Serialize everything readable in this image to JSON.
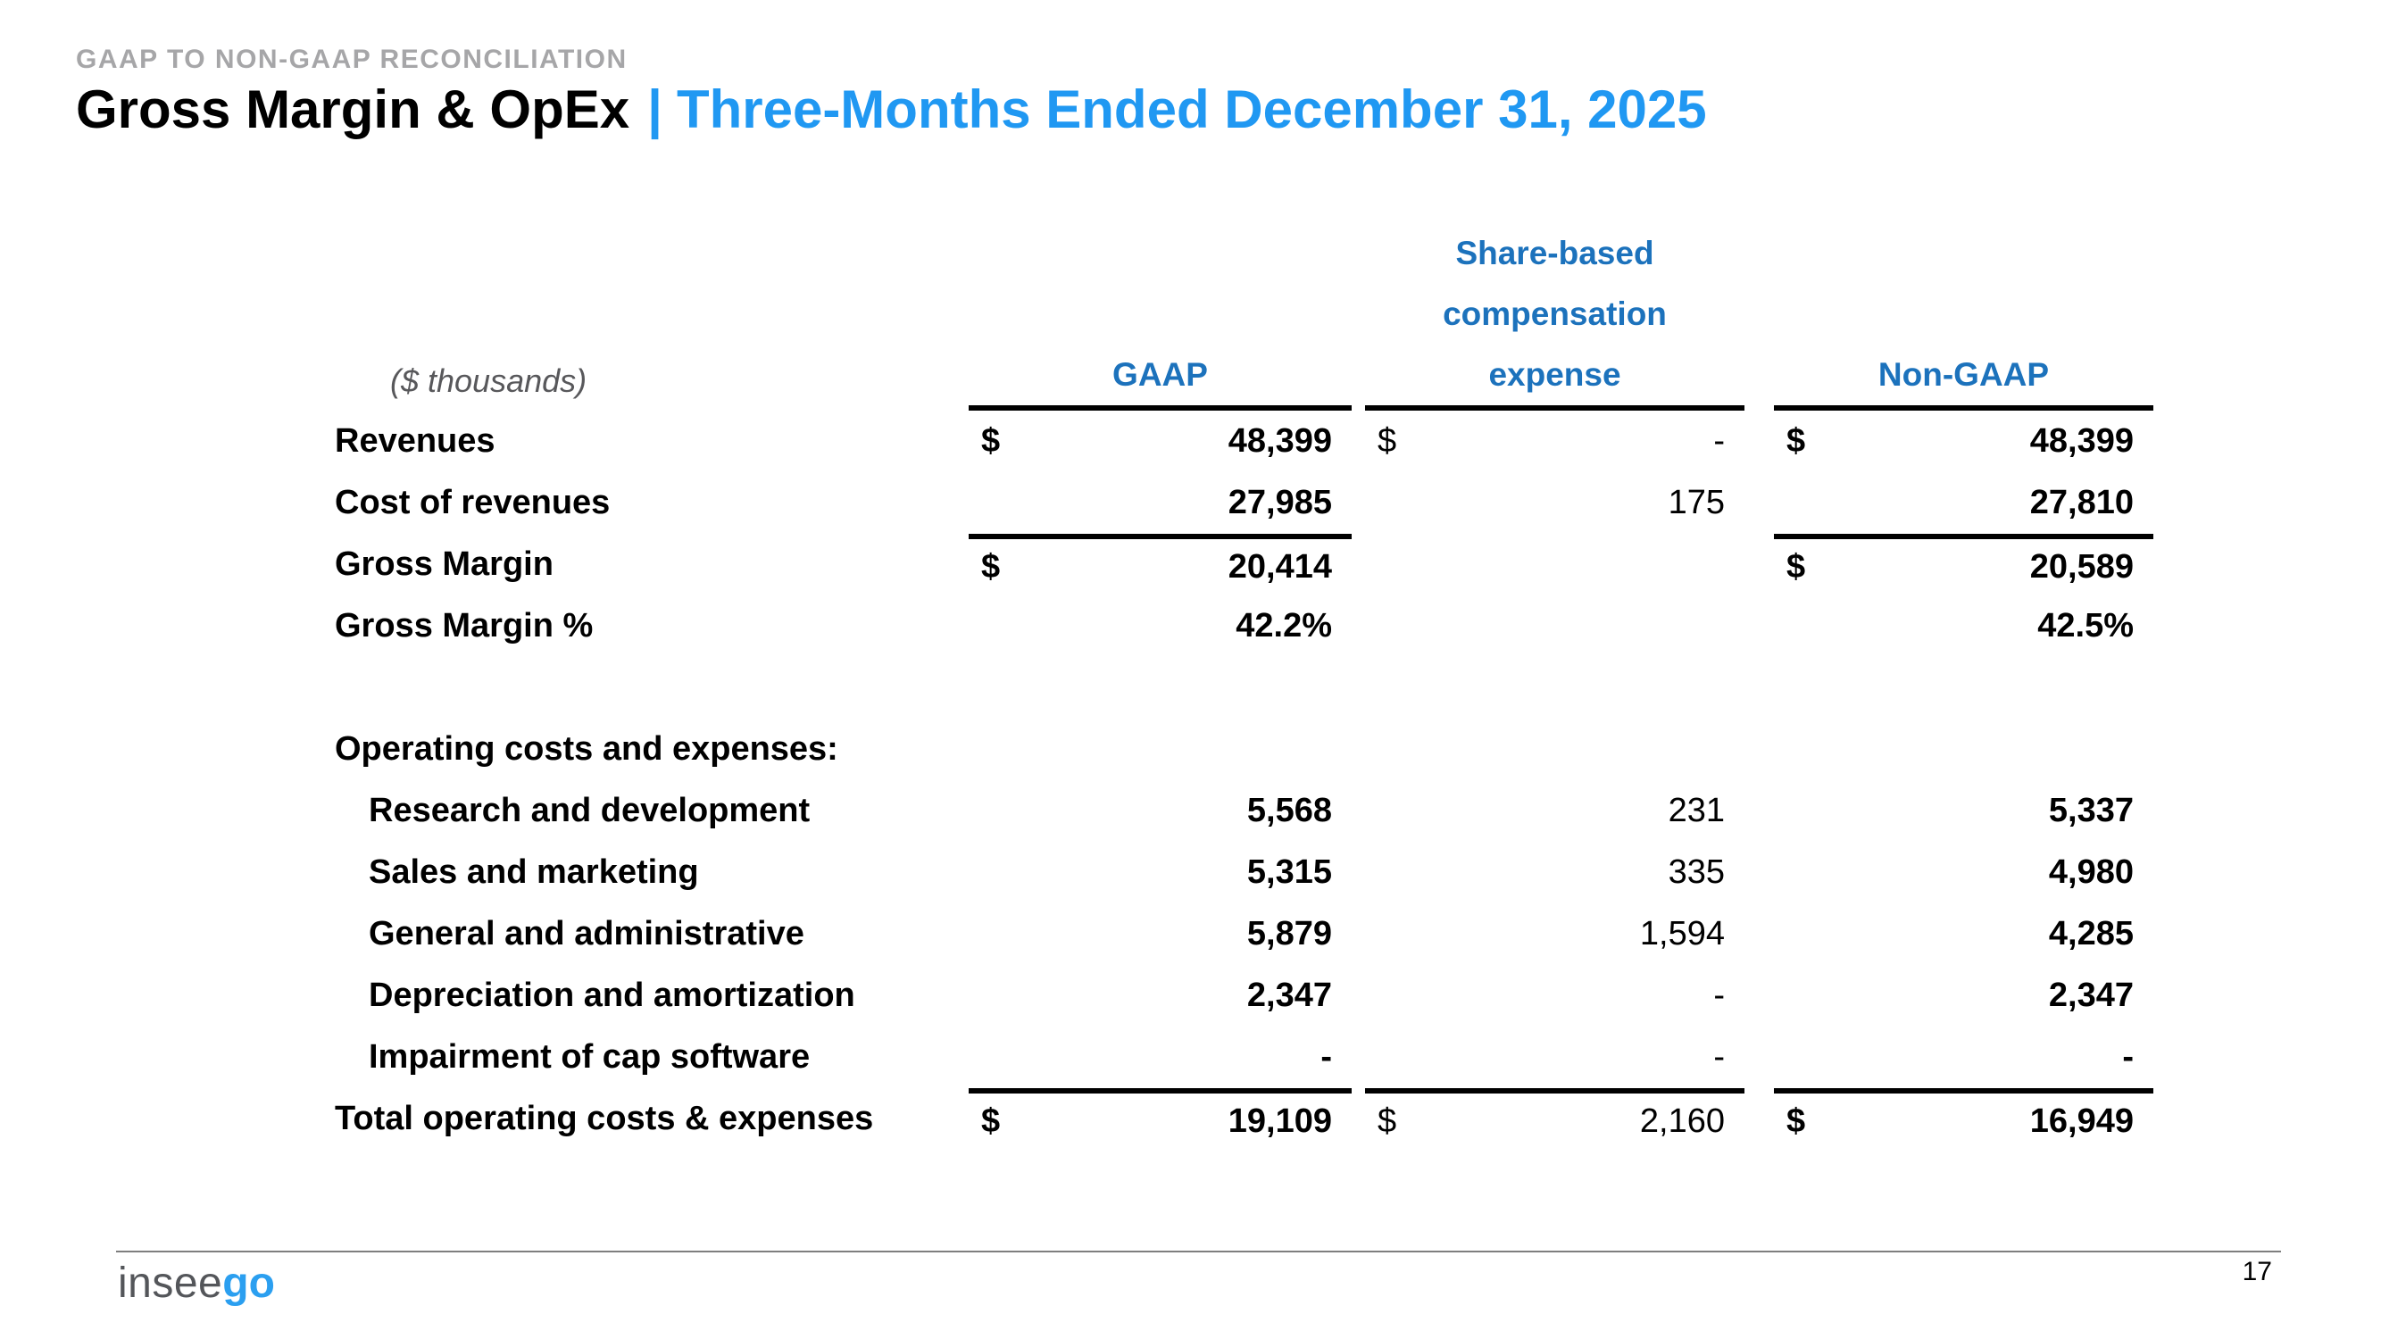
{
  "header": {
    "eyebrow": "GAAP TO NON-GAAP RECONCILIATION",
    "title_main": "Gross Margin & OpEx",
    "title_separator": "|",
    "title_period": "Three-Months Ended December 31, 2025"
  },
  "colors": {
    "accent_blue": "#2098f2",
    "table_header_blue": "#1c72bc",
    "eyebrow_gray": "#a6a6a8",
    "logo_gray": "#54565a",
    "logo_blue": "#2b9ff0"
  },
  "table": {
    "units_note": "($ thousands)",
    "header": {
      "gaap": "GAAP",
      "sbc_line1": "Share-based",
      "sbc_line2": "compensation",
      "sbc_line3": "expense",
      "non_gaap": "Non-GAAP"
    },
    "rows": [
      {
        "label": "Revenues",
        "gaap_cur": "$",
        "gaap_val": "48,399",
        "sbc_cur": "$",
        "sbc_val": "-",
        "ngaap_cur": "$",
        "ngaap_val": "48,399"
      },
      {
        "label": "Cost of revenues",
        "gaap_val": "27,985",
        "sbc_val": "175",
        "ngaap_val": "27,810"
      },
      {
        "label": "Gross Margin",
        "gaap_cur": "$",
        "gaap_val": "20,414",
        "ngaap_cur": "$",
        "ngaap_val": "20,589"
      },
      {
        "label": "Gross Margin %",
        "gaap_val": "42.2%",
        "ngaap_val": "42.5%"
      },
      {
        "label": "Operating costs and expenses:"
      },
      {
        "label": "Research and development",
        "gaap_val": "5,568",
        "sbc_val": "231",
        "ngaap_val": "5,337"
      },
      {
        "label": "Sales and marketing",
        "gaap_val": "5,315",
        "sbc_val": "335",
        "ngaap_val": "4,980"
      },
      {
        "label": "General and administrative",
        "gaap_val": "5,879",
        "sbc_val": "1,594",
        "ngaap_val": "4,285"
      },
      {
        "label": "Depreciation and amortization",
        "gaap_val": "2,347",
        "sbc_val": "-",
        "ngaap_val": "2,347"
      },
      {
        "label": "Impairment of cap software",
        "gaap_val": "-",
        "sbc_val": "-",
        "ngaap_val": "-"
      },
      {
        "label": "Total operating costs & expenses",
        "gaap_cur": "$",
        "gaap_val": "19,109",
        "sbc_cur": "$",
        "sbc_val": "2,160",
        "ngaap_cur": "$",
        "ngaap_val": "16,949"
      }
    ]
  },
  "footer": {
    "logo_gray": "insee",
    "logo_blue": "go",
    "page_number": "17"
  }
}
